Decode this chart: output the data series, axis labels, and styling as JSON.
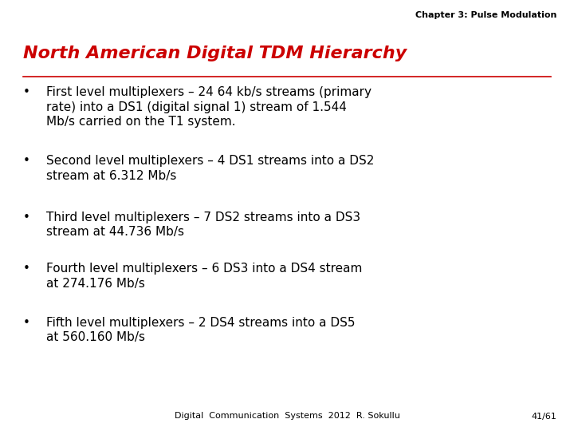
{
  "header": "Chapter 3: Pulse Modulation",
  "title": "North American Digital TDM Hierarchy",
  "title_color": "#CC0000",
  "bullet_points": [
    "First level multiplexers – 24 64 kb/s streams (primary\nrate) into a DS1 (digital signal 1) stream of 1.544\nMb/s carried on the T1 system.",
    "Second level multiplexers – 4 DS1 streams into a DS2\nstream at 6.312 Mb/s",
    "Third level multiplexers – 7 DS2 streams into a DS3\nstream at 44.736 Mb/s",
    "Fourth level multiplexers – 6 DS3 into a DS4 stream\nat 274.176 Mb/s",
    "Fifth level multiplexers – 2 DS4 streams into a DS5\nat 560.160 Mb/s"
  ],
  "footer_left": "Digital  Communication  Systems  2012  R. Sokullu",
  "footer_right": "41/61",
  "background_color": "#ffffff",
  "text_color": "#000000",
  "header_fontsize": 8,
  "title_fontsize": 16,
  "bullet_fontsize": 11,
  "footer_fontsize": 8
}
